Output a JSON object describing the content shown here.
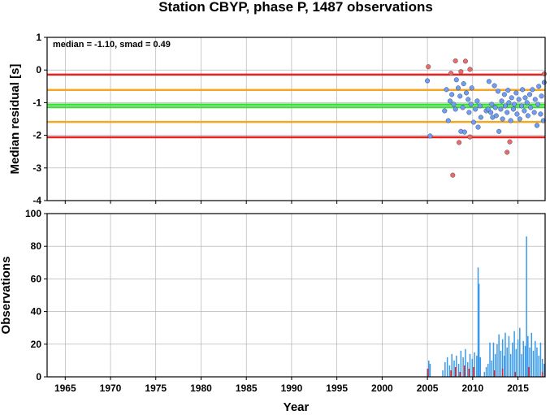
{
  "chart_data": [
    {
      "type": "scatter",
      "title": "Station CBYP, phase P, 1487 observations",
      "ylabel": "Median residual [s]",
      "xlim": [
        1963,
        2018
      ],
      "ylim": [
        -4,
        1
      ],
      "yticks": [
        1,
        0,
        -1,
        -2,
        -3,
        -4
      ],
      "ytick_labels": [
        "1",
        "0",
        "-1",
        "-2",
        "-3",
        "-4"
      ],
      "grid": true,
      "annotation": "median = -1.10, smad = 0.49",
      "reference_lines": [
        {
          "y": -0.14,
          "color": "#e8201e"
        },
        {
          "y": -0.61,
          "color": "#f5a623"
        },
        {
          "y": -1.06,
          "color": "#33e233"
        },
        {
          "y": -1.14,
          "color": "#33e233"
        },
        {
          "y": -1.59,
          "color": "#f5a623"
        },
        {
          "y": -2.06,
          "color": "#e8201e"
        }
      ],
      "series": [
        {
          "color": "#6f9ef0",
          "points": [
            [
              2005.0,
              -0.33
            ],
            [
              2005.3,
              -2.02
            ],
            [
              2006.9,
              -1.25
            ],
            [
              2007.1,
              -0.6
            ],
            [
              2007.3,
              -1.55
            ],
            [
              2007.5,
              -0.95
            ],
            [
              2007.7,
              -0.75
            ],
            [
              2007.9,
              -1.05
            ],
            [
              2008.1,
              -1.2
            ],
            [
              2008.2,
              -0.3
            ],
            [
              2008.4,
              -0.55
            ],
            [
              2008.6,
              -0.8
            ],
            [
              2008.7,
              -1.88
            ],
            [
              2008.9,
              -1.15
            ],
            [
              2009.0,
              -0.42
            ],
            [
              2009.1,
              -1.9
            ],
            [
              2009.3,
              -0.7
            ],
            [
              2009.5,
              -0.9
            ],
            [
              2009.6,
              -1.3
            ],
            [
              2009.8,
              -1.05
            ],
            [
              2009.9,
              -0.55
            ],
            [
              2010.1,
              -1.6
            ],
            [
              2010.3,
              -1.2
            ],
            [
              2010.5,
              -0.95
            ],
            [
              2010.6,
              -1.75
            ],
            [
              2010.8,
              -1.1
            ],
            [
              2010.9,
              -1.45
            ],
            [
              2011.5,
              -1.25
            ],
            [
              2011.7,
              -1.2
            ],
            [
              2011.8,
              -0.35
            ],
            [
              2012.0,
              -1.3
            ],
            [
              2012.1,
              -1.05
            ],
            [
              2012.2,
              -1.45
            ],
            [
              2012.4,
              -0.48
            ],
            [
              2012.5,
              -1.15
            ],
            [
              2012.6,
              -1.4
            ],
            [
              2012.8,
              -0.65
            ],
            [
              2012.9,
              -1.88
            ],
            [
              2013.1,
              -1.2
            ],
            [
              2013.2,
              -0.95
            ],
            [
              2013.3,
              -1.5
            ],
            [
              2013.5,
              -0.75
            ],
            [
              2013.6,
              -1.1
            ],
            [
              2013.8,
              -1.3
            ],
            [
              2013.9,
              -0.62
            ],
            [
              2014.0,
              -1.0
            ],
            [
              2014.2,
              -1.55
            ],
            [
              2014.3,
              -0.85
            ],
            [
              2014.5,
              -1.2
            ],
            [
              2014.6,
              -1.05
            ],
            [
              2014.8,
              -0.7
            ],
            [
              2014.9,
              -1.35
            ],
            [
              2015.1,
              -0.9
            ],
            [
              2015.2,
              -1.5
            ],
            [
              2015.4,
              -1.1
            ],
            [
              2015.5,
              -0.6
            ],
            [
              2015.7,
              -1.25
            ],
            [
              2015.8,
              -0.85
            ],
            [
              2016.0,
              -1.0
            ],
            [
              2016.1,
              -1.4
            ],
            [
              2016.3,
              -0.75
            ],
            [
              2016.4,
              -1.15
            ],
            [
              2016.6,
              -0.6
            ],
            [
              2016.8,
              -1.3
            ],
            [
              2016.9,
              -0.9
            ],
            [
              2017.1,
              -1.7
            ],
            [
              2017.2,
              -1.05
            ],
            [
              2017.3,
              -0.5
            ],
            [
              2017.5,
              -1.35
            ],
            [
              2017.6,
              -0.8
            ],
            [
              2017.8,
              -1.55
            ],
            [
              2017.9,
              -0.38
            ]
          ]
        },
        {
          "color": "#f06a5e",
          "points": [
            [
              2005.1,
              0.1
            ],
            [
              2007.6,
              -0.1
            ],
            [
              2007.8,
              -3.22
            ],
            [
              2008.1,
              0.28
            ],
            [
              2008.7,
              -0.05
            ],
            [
              2008.5,
              -2.22
            ],
            [
              2009.2,
              0.27
            ],
            [
              2009.7,
              -2.05
            ],
            [
              2009.7,
              0.02
            ],
            [
              2013.8,
              -2.52
            ],
            [
              2014.1,
              -2.2
            ],
            [
              2017.9,
              -0.12
            ]
          ]
        }
      ]
    },
    {
      "type": "bar",
      "xlabel": "Year",
      "ylabel": "Observations",
      "xlim": [
        1963,
        2018
      ],
      "ylim": [
        0,
        100
      ],
      "yticks": [
        0,
        20,
        40,
        60,
        80,
        100
      ],
      "ytick_labels": [
        "0",
        "20",
        "40",
        "60",
        "80",
        "100"
      ],
      "xticks": [
        1965,
        1970,
        1975,
        1980,
        1985,
        1990,
        1995,
        2000,
        2005,
        2010,
        2015
      ],
      "xtick_labels": [
        "1965",
        "1970",
        "1975",
        "1980",
        "1985",
        "1990",
        "1995",
        "2000",
        "2005",
        "2010",
        "2015"
      ],
      "grid": true,
      "series": [
        {
          "color": "#3a9ae8",
          "bars": [
            [
              2005.0,
              5
            ],
            [
              2005.15,
              10
            ],
            [
              2005.3,
              8
            ],
            [
              2006.7,
              4
            ],
            [
              2006.95,
              9
            ],
            [
              2007.2,
              12
            ],
            [
              2007.45,
              7
            ],
            [
              2007.7,
              14
            ],
            [
              2007.95,
              10
            ],
            [
              2008.2,
              13
            ],
            [
              2008.45,
              8
            ],
            [
              2008.7,
              16
            ],
            [
              2008.95,
              12
            ],
            [
              2009.2,
              17
            ],
            [
              2009.45,
              9
            ],
            [
              2009.7,
              14
            ],
            [
              2009.95,
              11
            ],
            [
              2010.2,
              15
            ],
            [
              2010.45,
              13
            ],
            [
              2010.6,
              67
            ],
            [
              2010.7,
              57
            ],
            [
              2010.85,
              12
            ],
            [
              2011.3,
              3
            ],
            [
              2011.5,
              6
            ],
            [
              2011.7,
              8
            ],
            [
              2011.9,
              21
            ],
            [
              2012.1,
              10
            ],
            [
              2012.3,
              21
            ],
            [
              2012.5,
              14
            ],
            [
              2012.7,
              20
            ],
            [
              2012.9,
              26
            ],
            [
              2013.1,
              16
            ],
            [
              2013.3,
              23
            ],
            [
              2013.5,
              13
            ],
            [
              2013.6,
              27
            ],
            [
              2013.8,
              18
            ],
            [
              2014.0,
              25
            ],
            [
              2014.2,
              14
            ],
            [
              2014.4,
              21
            ],
            [
              2014.6,
              28
            ],
            [
              2014.8,
              17
            ],
            [
              2015.0,
              23
            ],
            [
              2015.2,
              30
            ],
            [
              2015.4,
              14
            ],
            [
              2015.6,
              22
            ],
            [
              2015.8,
              19
            ],
            [
              2015.95,
              86
            ],
            [
              2016.1,
              25
            ],
            [
              2016.3,
              18
            ],
            [
              2016.5,
              27
            ],
            [
              2016.7,
              16
            ],
            [
              2016.9,
              22
            ],
            [
              2017.1,
              18
            ],
            [
              2017.3,
              13
            ],
            [
              2017.5,
              21
            ],
            [
              2017.7,
              11
            ],
            [
              2017.9,
              8
            ]
          ]
        },
        {
          "color": "#e8201e",
          "bars": [
            [
              2005.05,
              5
            ],
            [
              2007.6,
              4
            ],
            [
              2008.1,
              6
            ],
            [
              2008.6,
              3
            ],
            [
              2009.1,
              7
            ],
            [
              2009.6,
              5
            ],
            [
              2010.1,
              6
            ],
            [
              2012.4,
              4
            ],
            [
              2013.3,
              5
            ],
            [
              2014.7,
              3
            ],
            [
              2016.2,
              6
            ],
            [
              2017.7,
              3
            ]
          ]
        }
      ]
    }
  ]
}
